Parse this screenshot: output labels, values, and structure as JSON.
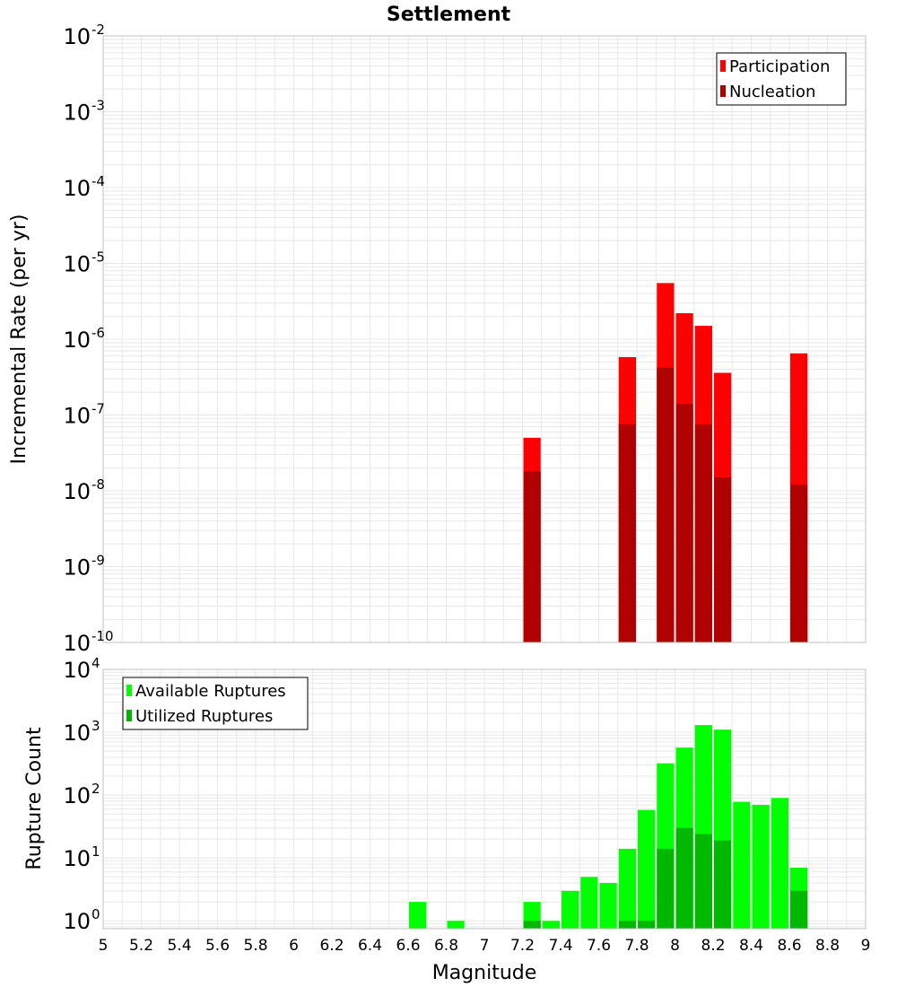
{
  "title": "Settlement",
  "xlabel": "Magnitude",
  "x_ticks": [
    "5",
    "5.2",
    "5.4",
    "5.6",
    "5.8",
    "6",
    "6.2",
    "6.4",
    "6.6",
    "6.8",
    "7",
    "7.2",
    "7.4",
    "7.6",
    "7.8",
    "8",
    "8.2",
    "8.4",
    "8.6",
    "8.8",
    "9"
  ],
  "colors": {
    "participation": "#ff0000",
    "nucleation": "#b00000",
    "available": "#00ff00",
    "utilized": "#00b800",
    "grid": "#e8e8e8",
    "frame": "#c0c0c0"
  },
  "chart_data": [
    {
      "type": "bar",
      "scale": "log",
      "xlim": [
        5,
        9
      ],
      "ylim": [
        1e-10,
        0.01
      ],
      "ylabel": "Incremental Rate (per yr)",
      "y_ticks": [
        {
          "base": "10",
          "exp": "-2"
        },
        {
          "base": "10",
          "exp": "-3"
        },
        {
          "base": "10",
          "exp": "-4"
        },
        {
          "base": "10",
          "exp": "-5"
        },
        {
          "base": "10",
          "exp": "-6"
        },
        {
          "base": "10",
          "exp": "-7"
        },
        {
          "base": "10",
          "exp": "-8"
        },
        {
          "base": "10",
          "exp": "-9"
        },
        {
          "base": "10",
          "exp": "-10"
        }
      ],
      "legend_position": "top-right",
      "series": [
        {
          "name": "Participation",
          "x": [
            7.25,
            7.75,
            7.95,
            8.05,
            8.15,
            8.25,
            8.65
          ],
          "values": [
            5e-08,
            5.8e-07,
            5.5e-06,
            2.2e-06,
            1.5e-06,
            3.6e-07,
            6.5e-07
          ]
        },
        {
          "name": "Nucleation",
          "x": [
            7.25,
            7.75,
            7.95,
            8.05,
            8.15,
            8.25,
            8.65
          ],
          "values": [
            1.8e-08,
            7.5e-08,
            4.2e-07,
            1.4e-07,
            7.5e-08,
            1.5e-08,
            1.2e-08
          ]
        }
      ]
    },
    {
      "type": "bar",
      "scale": "log",
      "xlim": [
        5,
        9
      ],
      "ylim": [
        0.75,
        10000.0
      ],
      "ylabel": "Rupture Count",
      "y_ticks": [
        {
          "base": "10",
          "exp": "4"
        },
        {
          "base": "10",
          "exp": "3"
        },
        {
          "base": "10",
          "exp": "2"
        },
        {
          "base": "10",
          "exp": "1"
        },
        {
          "base": "10",
          "exp": "0"
        }
      ],
      "legend_position": "top-left",
      "series": [
        {
          "name": "Available Ruptures",
          "x": [
            6.65,
            6.85,
            7.25,
            7.35,
            7.45,
            7.55,
            7.65,
            7.75,
            7.85,
            7.95,
            8.05,
            8.15,
            8.25,
            8.35,
            8.45,
            8.55,
            8.65
          ],
          "values": [
            2,
            1,
            2,
            1,
            3,
            5,
            4,
            14,
            58,
            320,
            570,
            1300,
            1100,
            78,
            70,
            90,
            7
          ]
        },
        {
          "name": "Utilized Ruptures",
          "x": [
            7.25,
            7.75,
            7.85,
            7.95,
            8.05,
            8.15,
            8.25,
            8.65
          ],
          "values": [
            1,
            1,
            1,
            14,
            30,
            24,
            19,
            3
          ]
        }
      ]
    }
  ]
}
